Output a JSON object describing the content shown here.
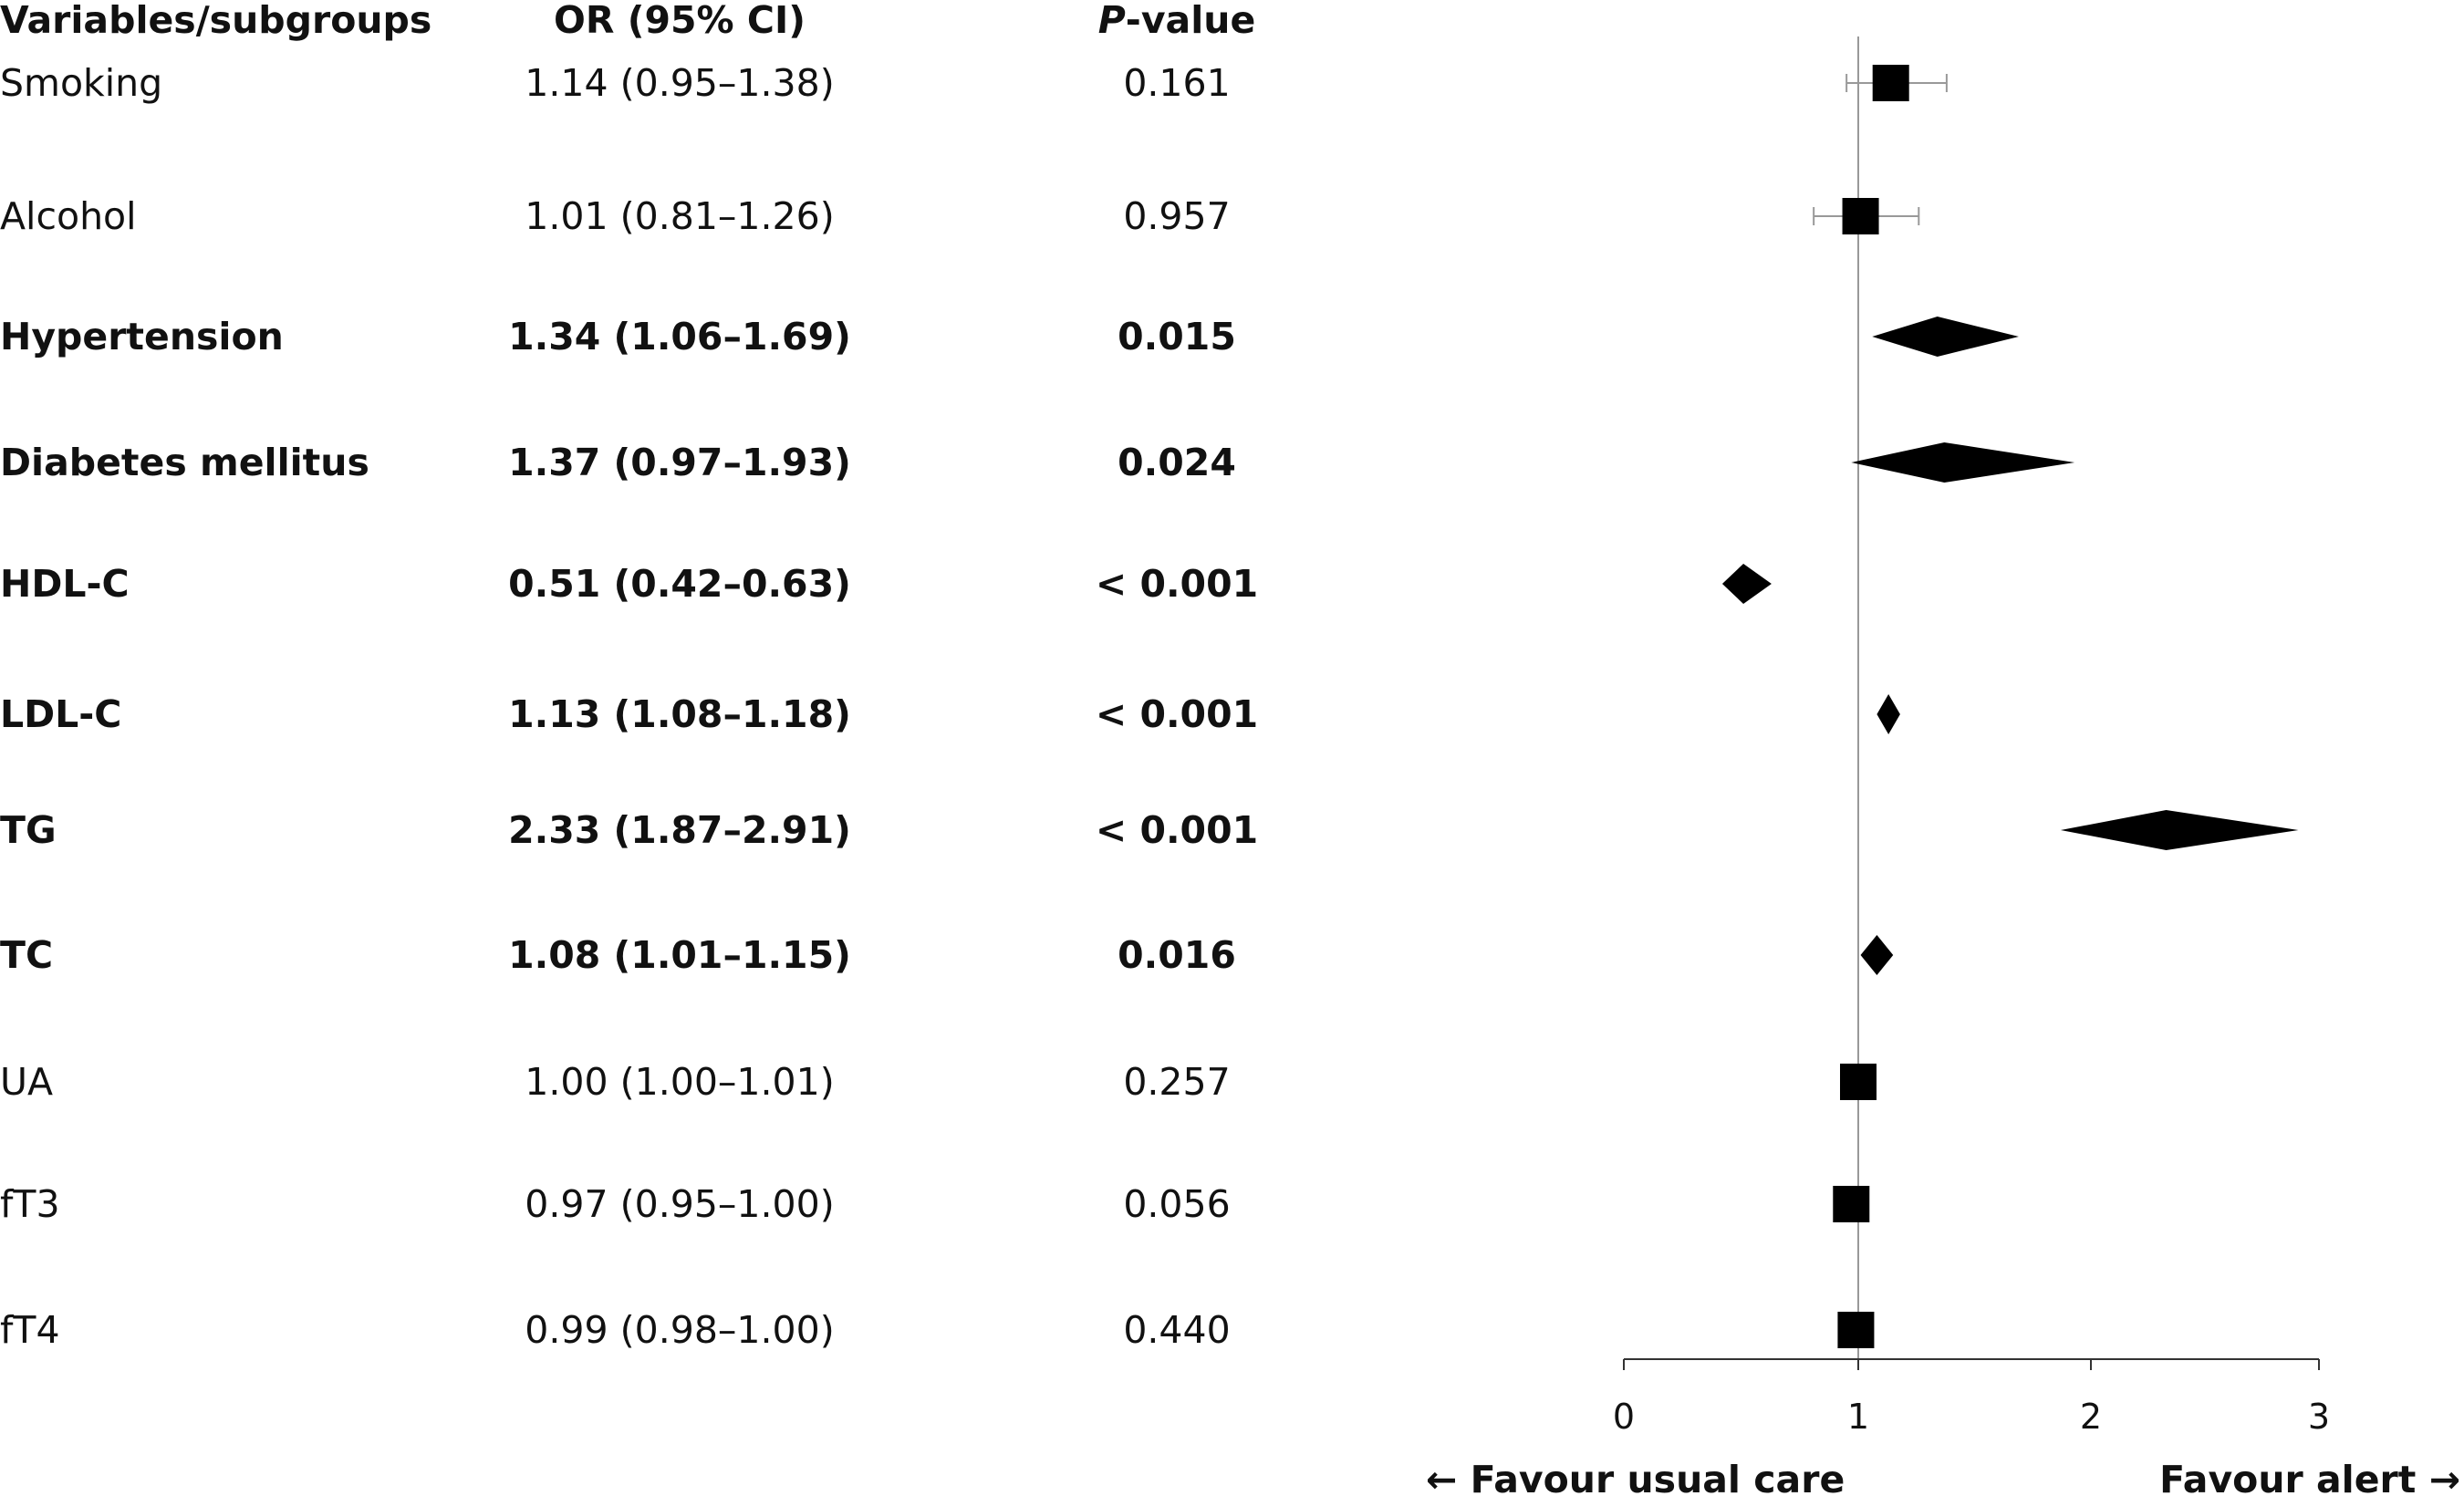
{
  "headers": {
    "variable": "Variables/subgroups",
    "or": "OR (95% CI)",
    "p_italic": "P",
    "p_rest": "-value"
  },
  "favour": {
    "left": "← Favour usual care",
    "right": "Favour alert →"
  },
  "chart_data": {
    "type": "forest",
    "xlim": [
      0,
      3
    ],
    "x_ticks": [
      "0",
      "1",
      "2",
      "3"
    ],
    "reference_line": 1,
    "rows": [
      {
        "label": "Smoking",
        "or_text": "1.14 (0.95–1.38)",
        "p_text": "0.161",
        "or": 1.14,
        "lower": 0.95,
        "upper": 1.38,
        "significant": false,
        "marker": "square"
      },
      {
        "label": "Alcohol",
        "or_text": "1.01 (0.81–1.26)",
        "p_text": "0.957",
        "or": 1.01,
        "lower": 0.81,
        "upper": 1.26,
        "significant": false,
        "marker": "square"
      },
      {
        "label": "Hypertension",
        "or_text": "1.34 (1.06–1.69)",
        "p_text": "0.015",
        "or": 1.34,
        "lower": 1.06,
        "upper": 1.69,
        "significant": true,
        "marker": "diamond"
      },
      {
        "label": "Diabetes mellitus",
        "or_text": "1.37 (0.97–1.93)",
        "p_text": "0.024",
        "or": 1.37,
        "lower": 0.97,
        "upper": 1.93,
        "significant": true,
        "marker": "diamond"
      },
      {
        "label": "HDL-C",
        "or_text": "0.51 (0.42–0.63)",
        "p_text": "< 0.001",
        "or": 0.51,
        "lower": 0.42,
        "upper": 0.63,
        "significant": true,
        "marker": "diamond"
      },
      {
        "label": "LDL-C",
        "or_text": "1.13 (1.08–1.18)",
        "p_text": "< 0.001",
        "or": 1.13,
        "lower": 1.08,
        "upper": 1.18,
        "significant": true,
        "marker": "diamond"
      },
      {
        "label": "TG",
        "or_text": "2.33 (1.87–2.91)",
        "p_text": "< 0.001",
        "or": 2.33,
        "lower": 1.87,
        "upper": 2.91,
        "significant": true,
        "marker": "diamond"
      },
      {
        "label": "TC",
        "or_text": "1.08 (1.01–1.15)",
        "p_text": "0.016",
        "or": 1.08,
        "lower": 1.01,
        "upper": 1.15,
        "significant": true,
        "marker": "diamond"
      },
      {
        "label": "UA",
        "or_text": "1.00 (1.00–1.01)",
        "p_text": "0.257",
        "or": 1.0,
        "lower": 1.0,
        "upper": 1.01,
        "significant": false,
        "marker": "square"
      },
      {
        "label": "fT3",
        "or_text": "0.97 (0.95–1.00)",
        "p_text": "0.056",
        "or": 0.97,
        "lower": 0.95,
        "upper": 1.0,
        "significant": false,
        "marker": "square"
      },
      {
        "label": "fT4",
        "or_text": "0.99 (0.98–1.00)",
        "p_text": "0.440",
        "or": 0.99,
        "lower": 0.98,
        "upper": 1.0,
        "significant": false,
        "marker": "square"
      }
    ]
  }
}
